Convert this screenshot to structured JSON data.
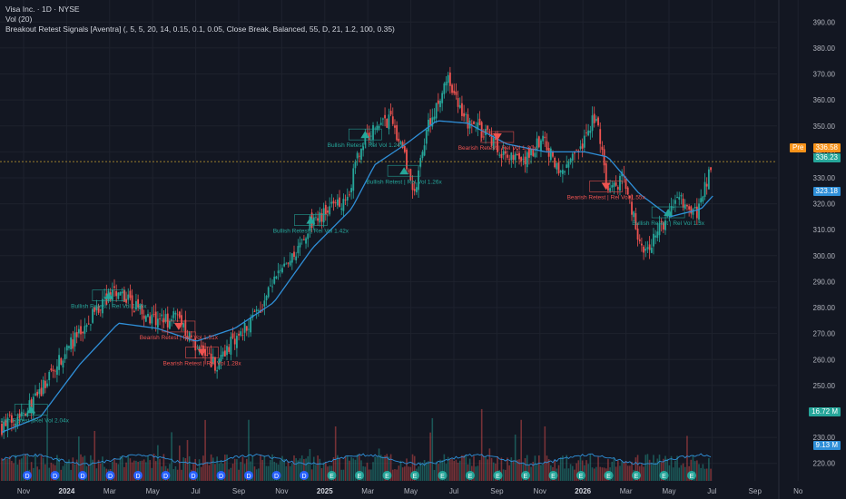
{
  "header": {
    "symbol_line": "Visa Inc. · 1D · NYSE",
    "volume_line": "Vol (20)",
    "indicator_line": "Breakout Retest Signals [Aventra] (, 5, 5, 20, 14, 0.15, 0.1, 0.05, Close Break, Balanced, 55, D, 21, 1.2, 100, 0.35)"
  },
  "price_tags": {
    "pre_label": "Pre",
    "pre_value": "336.58",
    "last_value": "336.23",
    "ma_value": "323.18",
    "vol_value": "16.72 M",
    "vol_ma_value": "9.13 M"
  },
  "colors": {
    "background": "#131722",
    "up": "#26a69a",
    "down": "#ef5350",
    "ma_line": "#2f8fd8",
    "pre_tag": "#f7931a",
    "grid": "#1e222d"
  },
  "chart_data": {
    "type": "candlestick",
    "y_axis_ticks": [
      "390.00",
      "380.00",
      "370.00",
      "360.00",
      "350.00",
      "340.00",
      "330.00",
      "320.00",
      "310.00",
      "300.00",
      "290.00",
      "280.00",
      "270.00",
      "260.00",
      "250.00",
      "240.00",
      "230.00",
      "220.00"
    ],
    "ylim": [
      215,
      395
    ],
    "x_axis_ticks": [
      "Nov",
      "2024",
      "Mar",
      "May",
      "Jul",
      "Sep",
      "Nov",
      "2025",
      "Mar",
      "May",
      "Jul",
      "Sep",
      "Nov",
      "2026",
      "Mar",
      "May",
      "Jul",
      "Sep",
      "No"
    ],
    "close_anchors": [
      [
        0,
        234
      ],
      [
        0.04,
        243
      ],
      [
        0.08,
        262
      ],
      [
        0.12,
        278
      ],
      [
        0.145,
        287
      ],
      [
        0.17,
        281
      ],
      [
        0.2,
        274
      ],
      [
        0.225,
        276
      ],
      [
        0.25,
        266
      ],
      [
        0.275,
        258
      ],
      [
        0.3,
        268
      ],
      [
        0.33,
        279
      ],
      [
        0.355,
        292
      ],
      [
        0.38,
        300
      ],
      [
        0.395,
        312
      ],
      [
        0.42,
        317
      ],
      [
        0.445,
        323
      ],
      [
        0.46,
        340
      ],
      [
        0.48,
        350
      ],
      [
        0.5,
        352
      ],
      [
        0.515,
        342
      ],
      [
        0.53,
        322
      ],
      [
        0.55,
        352
      ],
      [
        0.575,
        367
      ],
      [
        0.595,
        352
      ],
      [
        0.62,
        348
      ],
      [
        0.645,
        340
      ],
      [
        0.67,
        335
      ],
      [
        0.695,
        345
      ],
      [
        0.72,
        333
      ],
      [
        0.745,
        340
      ],
      [
        0.765,
        355
      ],
      [
        0.78,
        325
      ],
      [
        0.8,
        330
      ],
      [
        0.825,
        300
      ],
      [
        0.85,
        312
      ],
      [
        0.875,
        322
      ],
      [
        0.895,
        317
      ],
      [
        0.915,
        336
      ]
    ],
    "ma_anchors": [
      [
        0,
        232
      ],
      [
        0.05,
        238
      ],
      [
        0.1,
        258
      ],
      [
        0.15,
        274
      ],
      [
        0.2,
        272
      ],
      [
        0.25,
        267
      ],
      [
        0.3,
        272
      ],
      [
        0.35,
        282
      ],
      [
        0.4,
        303
      ],
      [
        0.45,
        318
      ],
      [
        0.48,
        335
      ],
      [
        0.52,
        343
      ],
      [
        0.56,
        352
      ],
      [
        0.6,
        351
      ],
      [
        0.65,
        343
      ],
      [
        0.7,
        340
      ],
      [
        0.75,
        340
      ],
      [
        0.78,
        338
      ],
      [
        0.82,
        324
      ],
      [
        0.86,
        315
      ],
      [
        0.9,
        318
      ],
      [
        0.915,
        323
      ]
    ],
    "signals": [
      {
        "text": "Bullish Retest | Rel Vol 2.04x",
        "kind": "bull",
        "x": 0.04,
        "y": 240
      },
      {
        "text": "Bullish Retest | Rel Vol 1.35x",
        "kind": "bull",
        "x": 0.14,
        "y": 284
      },
      {
        "text": "Bearish Retest | Rel Vol 1.51x",
        "kind": "bear",
        "x": 0.23,
        "y": 272
      },
      {
        "text": "Bearish Retest | Rel Vol 1.28x",
        "kind": "bear",
        "x": 0.26,
        "y": 262
      },
      {
        "text": "Bullish Retest | Rel Vol 1.42x",
        "kind": "bull",
        "x": 0.4,
        "y": 313
      },
      {
        "text": "Bullish Retest | Rel Vol 1.24x",
        "kind": "bull",
        "x": 0.47,
        "y": 346
      },
      {
        "text": "Bullish Retest | Rel Vol 1.26x",
        "kind": "bull",
        "x": 0.52,
        "y": 332
      },
      {
        "text": "Bearish Retest | Rel Vol 1.30x",
        "kind": "bear",
        "x": 0.64,
        "y": 345
      },
      {
        "text": "Bearish Retest | Rel Vol 1.55x",
        "kind": "bear",
        "x": 0.78,
        "y": 326
      },
      {
        "text": "Bullish Retest | Rel Vol 1.3x",
        "kind": "bull",
        "x": 0.86,
        "y": 316
      }
    ],
    "event_markers": [
      "D",
      "D",
      "D",
      "D",
      "D",
      "D",
      "D",
      "D",
      "D",
      "D",
      "D",
      "E",
      "E",
      "E",
      "E",
      "E",
      "E",
      "E",
      "E",
      "E",
      "E",
      "E",
      "E",
      "E",
      "E"
    ]
  }
}
